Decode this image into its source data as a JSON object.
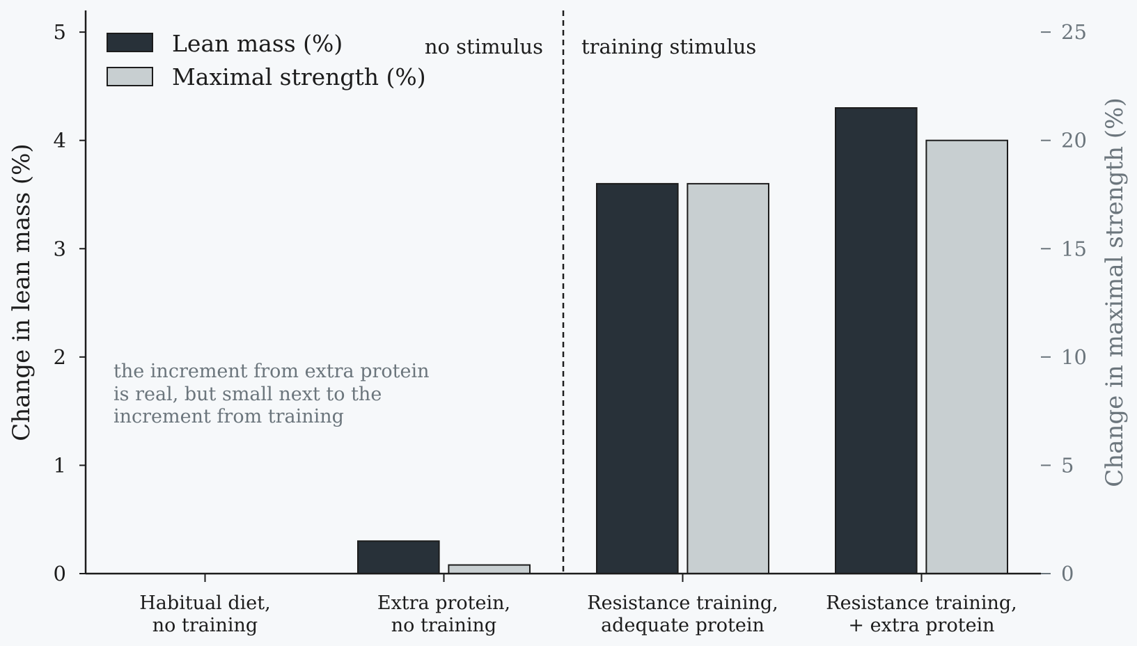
{
  "chart_data": {
    "type": "bar",
    "categories": [
      [
        "Habitual diet,",
        "no training"
      ],
      [
        "Extra protein,",
        "no training"
      ],
      [
        "Resistance training,",
        "adequate protein"
      ],
      [
        "Resistance training,",
        "+ extra protein"
      ]
    ],
    "series": [
      {
        "name": "Lean mass (%)",
        "axis": "left",
        "color": "#283139",
        "values": [
          0,
          0.3,
          3.6,
          4.3
        ]
      },
      {
        "name": "Maximal strength (%)",
        "axis": "right",
        "color": "#c8cfd1",
        "values": [
          0,
          0.4,
          18,
          20
        ]
      }
    ],
    "ylabel": "Change in lean mass (%)",
    "ylabel_right": "Change in maximal strength (%)",
    "ylim": [
      0,
      5.2
    ],
    "ylim_right": [
      0,
      26
    ],
    "yticks": [
      0,
      1,
      2,
      3,
      4,
      5
    ],
    "yticks_right": [
      0,
      5,
      10,
      15,
      20,
      25
    ],
    "legend_position": "top-left",
    "grid": false,
    "divider_after_category": 1,
    "region_labels": {
      "left": "no stimulus",
      "right": "training stimulus"
    },
    "annotation": [
      "the increment from extra protein",
      "is real, but small next to the",
      "increment from training"
    ],
    "colors": {
      "axis": "#1c1c1c",
      "right_axis": "#6b757c",
      "background": "#f6f8fa"
    }
  }
}
